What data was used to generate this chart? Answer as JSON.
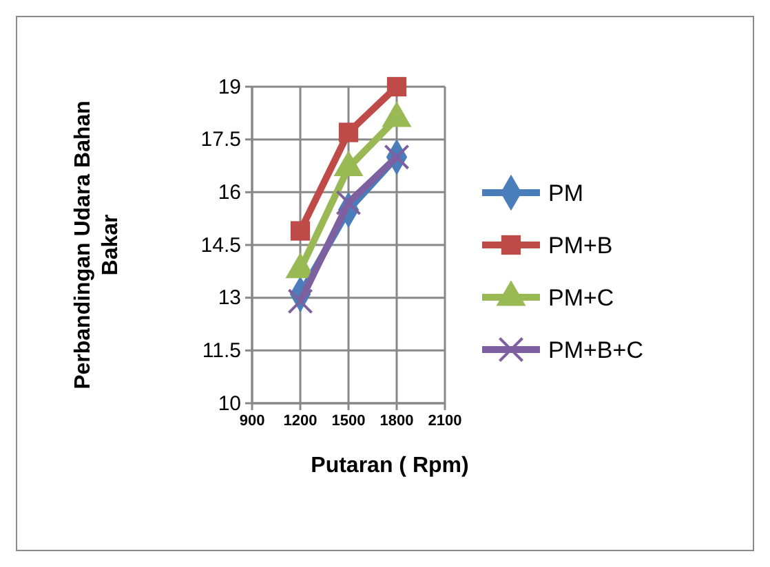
{
  "chart_data": {
    "type": "line",
    "xlabel": "Putaran ( Rpm)",
    "ylabel": "Perbandingan Udara Bahan Bakar",
    "x": [
      1200,
      1500,
      1800
    ],
    "xlim": [
      900,
      2100
    ],
    "xticks": [
      900,
      1200,
      1500,
      1800,
      2100
    ],
    "ylim": [
      10,
      19
    ],
    "yticks": [
      10,
      11.5,
      13,
      14.5,
      16,
      17.5,
      19
    ],
    "grid": true,
    "legend": "right",
    "series": [
      {
        "name": "PM",
        "color": "#4a7ebb",
        "marker": "diamond",
        "values": [
          13.1,
          15.5,
          17.0
        ]
      },
      {
        "name": "PM+B",
        "color": "#be4b48",
        "marker": "square",
        "values": [
          14.9,
          17.7,
          19.0
        ]
      },
      {
        "name": "PM+C",
        "color": "#98b954",
        "marker": "triangle",
        "values": [
          13.8,
          16.7,
          18.1
        ]
      },
      {
        "name": "PM+B+C",
        "color": "#7d60a0",
        "marker": "cross",
        "values": [
          12.9,
          15.7,
          17.0
        ]
      }
    ]
  }
}
